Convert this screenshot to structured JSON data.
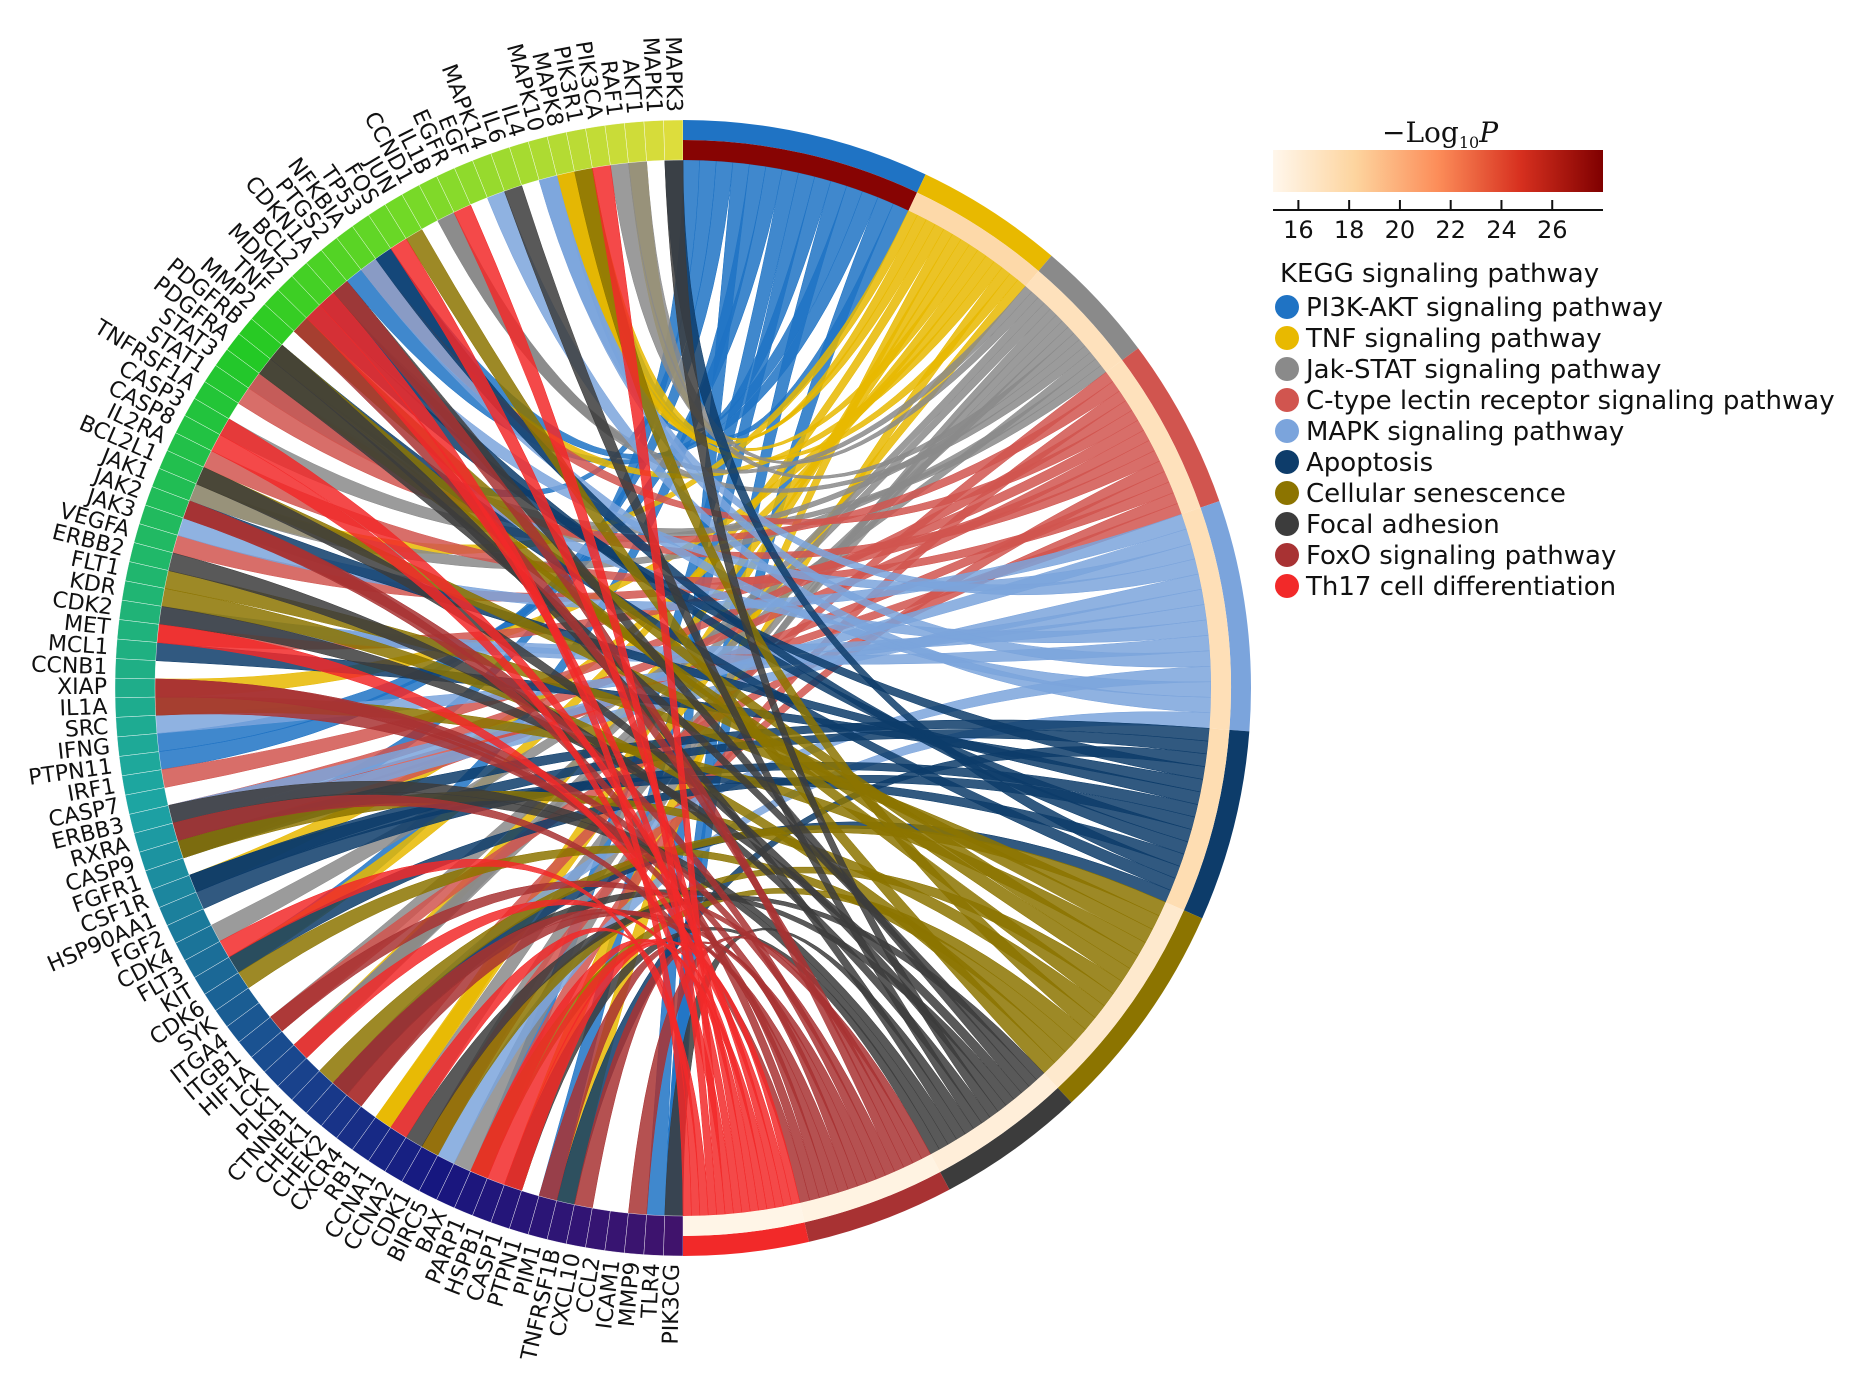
{
  "pathways": [
    {
      "name": "PI3K-AKT signaling pathway",
      "color": "#1f73c4",
      "neglog10p": 27.7
    },
    {
      "name": "TNF signaling pathway",
      "color": "#e8b900",
      "neglog10p": 17.8
    },
    {
      "name": "Jak-STAT signaling pathway",
      "color": "#8a8a8a",
      "neglog10p": 17.0
    },
    {
      "name": "C-type lectin receptor signaling pathway",
      "color": "#d1554f",
      "neglog10p": 17.0
    },
    {
      "name": "MAPK signaling pathway",
      "color": "#7ba4dc",
      "neglog10p": 17.2
    },
    {
      "name": "Apoptosis",
      "color": "#0d3c6a",
      "neglog10p": 17.4
    },
    {
      "name": "Cellular senescence",
      "color": "#8c7400",
      "neglog10p": 16.3
    },
    {
      "name": "Focal adhesion",
      "color": "#3c3c3c",
      "neglog10p": 15.8
    },
    {
      "name": "FoxO signaling pathway",
      "color": "#a83233",
      "neglog10p": 15.4
    },
    {
      "name": "Th17 cell differentiation",
      "color": "#f22929",
      "neglog10p": 15.2
    }
  ],
  "pathway_weights": [
    75,
    45,
    38,
    52,
    70,
    58,
    68,
    45,
    45,
    38
  ],
  "genes": [
    "MAPK3",
    "MAPK1",
    "AKT1",
    "RAF1",
    "PIK3CA",
    "PIK3R1",
    "MAPK8",
    "MAPK10",
    "IL4",
    "IL6",
    "MAPK14",
    "EGF",
    "EGFR",
    "IL1B",
    "CCND1",
    "JUN",
    "FOS",
    "TP53",
    "NFKBIA",
    "PTGS2",
    "CDKN1A",
    "BCL2",
    "MDM2",
    "TNF",
    "MMP2",
    "PDGFRB",
    "PDGFRA",
    "STAT3",
    "STAT1",
    "TNFRSF1A",
    "CASP3",
    "CASP8",
    "IL2RA",
    "BCL2L1",
    "JAK1",
    "JAK2",
    "JAK3",
    "VEGFA",
    "ERBB2",
    "FLT1",
    "KDR",
    "CDK2",
    "MET",
    "MCL1",
    "CCNB1",
    "XIAP",
    "IL1A",
    "SRC",
    "IFNG",
    "PTPN11",
    "IRF1",
    "CASP7",
    "ERBB3",
    "RXRA",
    "CASP9",
    "FGFR1",
    "CSF1R",
    "HSP90AA1",
    "FGF2",
    "CDK4",
    "FLT3",
    "KIT",
    "CDK6",
    "SYK",
    "ITGA4",
    "ITGB1",
    "HIF1A",
    "LCK",
    "PLK1",
    "CTNNB1",
    "CHEK1",
    "CHEK2",
    "CXCR4",
    "RB1",
    "CCNA1",
    "CCNA2",
    "CDK1",
    "BIRC5",
    "BAX",
    "PARP1",
    "HSPB1",
    "CASP1",
    "PTPN1",
    "PIM1",
    "TNFRSF1B",
    "CXCL10",
    "CCL2",
    "ICAM1",
    "MMP9",
    "TLR4",
    "PIK3CG"
  ],
  "colorbar": {
    "title_main": "−Log",
    "title_sub": "10",
    "title_var": "P",
    "min": 15,
    "max": 28,
    "ticks": [
      16,
      18,
      20,
      22,
      24,
      26
    ],
    "colors": [
      "#fff7ec",
      "#fdd49e",
      "#fc8d59",
      "#d7301f",
      "#7f0000"
    ]
  },
  "legend_title": "KEGG signaling pathway"
}
